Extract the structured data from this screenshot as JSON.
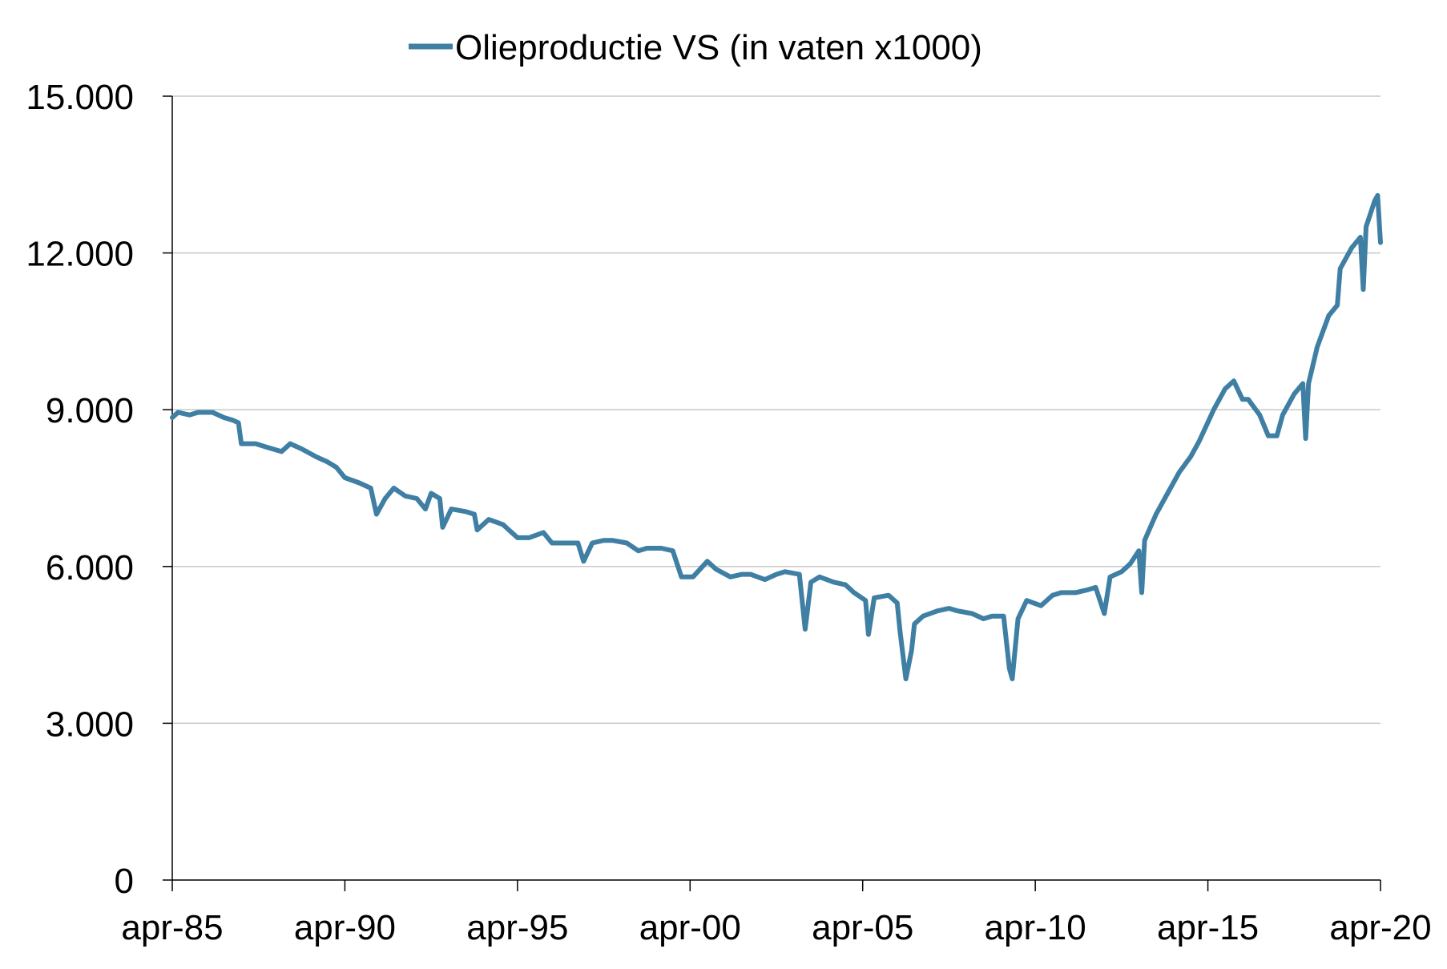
{
  "chart_data": {
    "type": "line",
    "title": "",
    "xlabel": "",
    "ylabel": "",
    "x_tick_labels": [
      "apr-85",
      "apr-90",
      "apr-95",
      "apr-00",
      "apr-05",
      "apr-10",
      "apr-15",
      "apr-20"
    ],
    "y_tick_labels": [
      "0",
      "3.000",
      "6.000",
      "9.000",
      "12.000",
      "15.000"
    ],
    "y_ticks": [
      0,
      3000,
      6000,
      9000,
      12000,
      15000
    ],
    "xlim": [
      "1985-04",
      "2020-04"
    ],
    "ylim": [
      0,
      15000
    ],
    "grid": true,
    "legend_position": "top-center",
    "colors": {
      "series": "#3f7fa3",
      "grid": "#c8c8c8",
      "axis": "#000000"
    },
    "series": [
      {
        "name": "Olieproductie VS (in vaten x1000)",
        "points": [
          [
            "1985-04",
            8850
          ],
          [
            "1985-06",
            8950
          ],
          [
            "1985-10",
            8900
          ],
          [
            "1986-01",
            8950
          ],
          [
            "1986-06",
            8950
          ],
          [
            "1986-10",
            8850
          ],
          [
            "1987-01",
            8800
          ],
          [
            "1987-03",
            8750
          ],
          [
            "1987-04",
            8350
          ],
          [
            "1987-09",
            8350
          ],
          [
            "1988-01",
            8280
          ],
          [
            "1988-06",
            8200
          ],
          [
            "1988-09",
            8350
          ],
          [
            "1989-01",
            8250
          ],
          [
            "1989-06",
            8100
          ],
          [
            "1989-10",
            8000
          ],
          [
            "1990-01",
            7900
          ],
          [
            "1990-04",
            7700
          ],
          [
            "1990-09",
            7600
          ],
          [
            "1991-01",
            7500
          ],
          [
            "1991-03",
            7000
          ],
          [
            "1991-06",
            7300
          ],
          [
            "1991-09",
            7500
          ],
          [
            "1992-01",
            7350
          ],
          [
            "1992-05",
            7300
          ],
          [
            "1992-08",
            7100
          ],
          [
            "1992-10",
            7400
          ],
          [
            "1993-01",
            7300
          ],
          [
            "1993-02",
            6750
          ],
          [
            "1993-05",
            7100
          ],
          [
            "1993-10",
            7050
          ],
          [
            "1994-01",
            7000
          ],
          [
            "1994-02",
            6700
          ],
          [
            "1994-06",
            6900
          ],
          [
            "1994-11",
            6800
          ],
          [
            "1995-01",
            6700
          ],
          [
            "1995-04",
            6550
          ],
          [
            "1995-08",
            6550
          ],
          [
            "1996-01",
            6650
          ],
          [
            "1996-04",
            6450
          ],
          [
            "1996-08",
            6450
          ],
          [
            "1997-01",
            6450
          ],
          [
            "1997-03",
            6100
          ],
          [
            "1997-06",
            6450
          ],
          [
            "1997-10",
            6500
          ],
          [
            "1998-01",
            6500
          ],
          [
            "1998-06",
            6450
          ],
          [
            "1998-10",
            6300
          ],
          [
            "1999-01",
            6350
          ],
          [
            "1999-06",
            6350
          ],
          [
            "1999-10",
            6300
          ],
          [
            "2000-01",
            5800
          ],
          [
            "2000-05",
            5800
          ],
          [
            "2000-10",
            6100
          ],
          [
            "2001-01",
            5950
          ],
          [
            "2001-06",
            5800
          ],
          [
            "2001-10",
            5850
          ],
          [
            "2002-01",
            5850
          ],
          [
            "2002-06",
            5750
          ],
          [
            "2002-10",
            5850
          ],
          [
            "2003-01",
            5900
          ],
          [
            "2003-06",
            5850
          ],
          [
            "2003-08",
            4800
          ],
          [
            "2003-10",
            5700
          ],
          [
            "2004-01",
            5800
          ],
          [
            "2004-06",
            5700
          ],
          [
            "2004-10",
            5650
          ],
          [
            "2005-01",
            5500
          ],
          [
            "2005-05",
            5350
          ],
          [
            "2005-06",
            4700
          ],
          [
            "2005-08",
            5400
          ],
          [
            "2006-01",
            5450
          ],
          [
            "2006-04",
            5300
          ],
          [
            "2006-05",
            4750
          ],
          [
            "2006-07",
            3850
          ],
          [
            "2006-09",
            4400
          ],
          [
            "2006-10",
            4900
          ],
          [
            "2007-01",
            5050
          ],
          [
            "2007-06",
            5150
          ],
          [
            "2007-10",
            5200
          ],
          [
            "2008-01",
            5150
          ],
          [
            "2008-06",
            5100
          ],
          [
            "2008-10",
            5000
          ],
          [
            "2009-01",
            5050
          ],
          [
            "2009-05",
            5050
          ],
          [
            "2009-07",
            4050
          ],
          [
            "2009-08",
            3850
          ],
          [
            "2009-10",
            5000
          ],
          [
            "2010-01",
            5350
          ],
          [
            "2010-06",
            5250
          ],
          [
            "2010-10",
            5450
          ],
          [
            "2011-01",
            5500
          ],
          [
            "2011-06",
            5500
          ],
          [
            "2011-10",
            5550
          ],
          [
            "2012-01",
            5600
          ],
          [
            "2012-04",
            5100
          ],
          [
            "2012-06",
            5800
          ],
          [
            "2012-10",
            5900
          ],
          [
            "2013-01",
            6050
          ],
          [
            "2013-04",
            6300
          ],
          [
            "2013-05",
            5500
          ],
          [
            "2013-06",
            6500
          ],
          [
            "2013-10",
            7000
          ],
          [
            "2014-01",
            7300
          ],
          [
            "2014-06",
            7800
          ],
          [
            "2014-10",
            8100
          ],
          [
            "2015-01",
            8400
          ],
          [
            "2015-06",
            9000
          ],
          [
            "2015-10",
            9400
          ],
          [
            "2016-01",
            9550
          ],
          [
            "2016-04",
            9200
          ],
          [
            "2016-06",
            9200
          ],
          [
            "2016-10",
            8900
          ],
          [
            "2017-01",
            8500
          ],
          [
            "2017-04",
            8500
          ],
          [
            "2017-06",
            8900
          ],
          [
            "2017-10",
            9300
          ],
          [
            "2018-01",
            9500
          ],
          [
            "2018-02",
            8450
          ],
          [
            "2018-03",
            9500
          ],
          [
            "2018-06",
            10200
          ],
          [
            "2018-10",
            10800
          ],
          [
            "2019-01",
            11000
          ],
          [
            "2019-02",
            11700
          ],
          [
            "2019-06",
            12100
          ],
          [
            "2019-09",
            12300
          ],
          [
            "2019-10",
            11300
          ],
          [
            "2019-11",
            12500
          ],
          [
            "2020-02",
            13000
          ],
          [
            "2020-03",
            13100
          ],
          [
            "2020-04",
            12200
          ]
        ]
      }
    ]
  }
}
